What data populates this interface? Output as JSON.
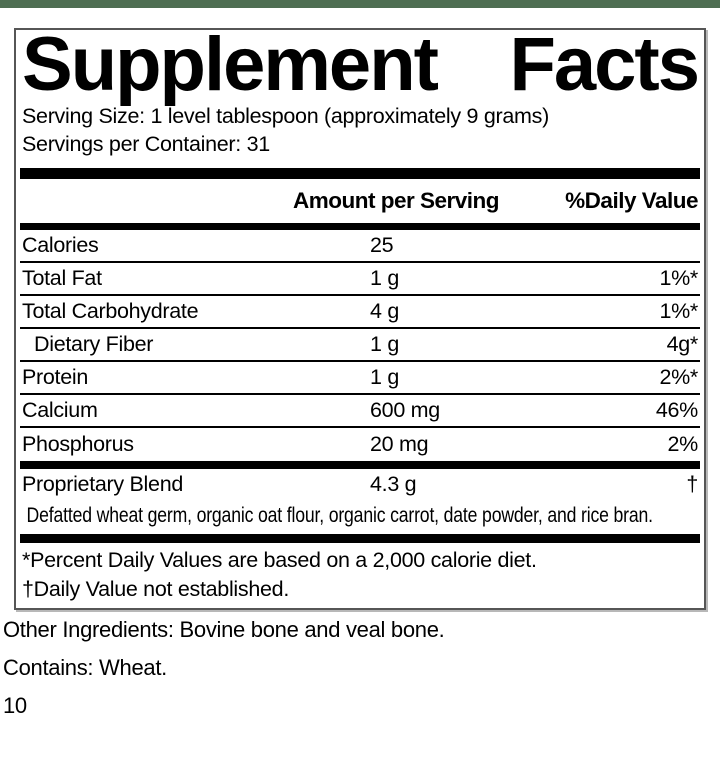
{
  "colors": {
    "header_strip": "#4e6e52",
    "bars": "#000000",
    "box_border": "#565656"
  },
  "title": {
    "word1": "Supplement",
    "word2": "Facts"
  },
  "serving": {
    "size_line": "Serving Size: 1 level tablespoon (approximately 9 grams)",
    "container_line": "Servings per Container: 31"
  },
  "table": {
    "headers": {
      "amount": "Amount per Serving",
      "daily_value": "%Daily Value"
    },
    "rows": [
      {
        "name": "Calories",
        "amount": "25",
        "dv": ""
      },
      {
        "name": "Total Fat",
        "amount": "1 g",
        "dv": "1%*"
      },
      {
        "name": "Total Carbohydrate",
        "amount": "4 g",
        "dv": "1%*"
      },
      {
        "name": "Dietary Fiber",
        "amount": "1 g",
        "dv": "4g*"
      },
      {
        "name": "Protein",
        "amount": "1 g",
        "dv": "2%*"
      },
      {
        "name": "Calcium",
        "amount": "600 mg",
        "dv": "46%"
      },
      {
        "name": "Phosphorus",
        "amount": "20 mg",
        "dv": "2%"
      }
    ],
    "blend": {
      "name": "Proprietary Blend",
      "amount": "4.3 g",
      "dv": "†",
      "description": "Defatted wheat germ, organic oat flour, organic carrot, date powder, and rice bran."
    }
  },
  "footnotes": {
    "percent_note": "*Percent Daily Values are based on a 2,000 calorie diet.",
    "dagger_note": "†Daily Value not established."
  },
  "other_ingredients": "Other Ingredients: Bovine bone and veal bone.",
  "contains": "Contains: Wheat.",
  "page_number": "10"
}
